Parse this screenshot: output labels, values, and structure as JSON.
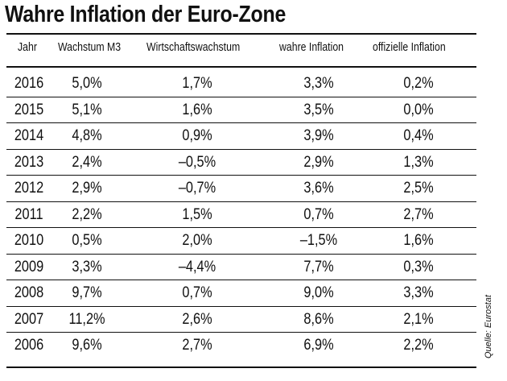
{
  "title": "Wahre Inflation der Euro-Zone",
  "headers": [
    "Jahr",
    "Wachstum M3",
    "Wirtschaftswachstum",
    "wahre Inflation",
    "offizielle Inflation"
  ],
  "rows": [
    [
      "2016",
      "5,0%",
      "1,7%",
      "3,3%",
      "0,2%"
    ],
    [
      "2015",
      "5,1%",
      "1,6%",
      "3,5%",
      "0,0%"
    ],
    [
      "2014",
      "4,8%",
      "0,9%",
      "3,9%",
      "0,4%"
    ],
    [
      "2013",
      "2,4%",
      "–0,5%",
      "2,9%",
      "1,3%"
    ],
    [
      "2012",
      "2,9%",
      "–0,7%",
      "3,6%",
      "2,5%"
    ],
    [
      "2011",
      "2,2%",
      "1,5%",
      "0,7%",
      "2,7%"
    ],
    [
      "2010",
      "0,5%",
      "2,0%",
      "–1,5%",
      "1,6%"
    ],
    [
      "2009",
      "3,3%",
      "–4,4%",
      "7,7%",
      "0,3%"
    ],
    [
      "2008",
      "9,7%",
      "0,7%",
      "9,0%",
      "3,3%"
    ],
    [
      "2007",
      "11,2%",
      "2,6%",
      "8,6%",
      "2,1%"
    ],
    [
      "2006",
      "9,6%",
      "2,7%",
      "6,9%",
      "2,2%"
    ]
  ],
  "source": "Quelle: Eurostat"
}
